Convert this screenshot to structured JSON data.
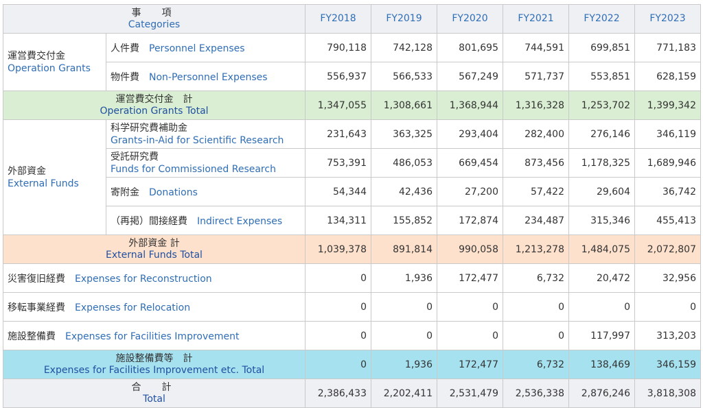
{
  "header": {
    "category_jp": "事　項",
    "category_en": "Categories",
    "years": [
      "FY2018",
      "FY2019",
      "FY2020",
      "FY2021",
      "FY2022",
      "FY2023"
    ]
  },
  "operation_grants": {
    "group_jp": "運営費交付金",
    "group_en": "Operation Grants",
    "rows": [
      {
        "jp": "人件費",
        "en": "Personnel Expenses",
        "values": [
          "790,118",
          "742,128",
          "801,695",
          "744,591",
          "699,851",
          "771,183"
        ]
      },
      {
        "jp": "物件費",
        "en": "Non-Personnel Expenses",
        "values": [
          "556,937",
          "566,533",
          "567,249",
          "571,737",
          "553,851",
          "628,159"
        ]
      }
    ],
    "total": {
      "jp": "運営費交付金　計",
      "en": "Operation Grants Total",
      "values": [
        "1,347,055",
        "1,308,661",
        "1,368,944",
        "1,316,328",
        "1,253,702",
        "1,399,342"
      ]
    }
  },
  "external_funds": {
    "group_jp": "外部資金",
    "group_en": "External Funds",
    "rows": [
      {
        "jp": "科学研究費補助金",
        "en": "Grants-in-Aid for Scientific Research",
        "values": [
          "231,643",
          "363,325",
          "293,404",
          "282,400",
          "276,146",
          "346,119"
        ]
      },
      {
        "jp": "受託研究費",
        "en": "Funds for Commissioned Research",
        "values": [
          "753,391",
          "486,053",
          "669,454",
          "873,456",
          "1,178,325",
          "1,689,946"
        ]
      },
      {
        "jp": "寄附金",
        "en": "Donations",
        "values": [
          "54,344",
          "42,436",
          "27,200",
          "57,422",
          "29,604",
          "36,742"
        ]
      },
      {
        "jp": "（再掲）間接経費",
        "en": "Indirect Expenses",
        "values": [
          "134,311",
          "155,852",
          "172,874",
          "234,487",
          "315,346",
          "455,413"
        ]
      }
    ],
    "total": {
      "jp": "外部資金 計",
      "en": "External Funds Total",
      "values": [
        "1,039,378",
        "891,814",
        "990,058",
        "1,213,278",
        "1,484,075",
        "2,072,807"
      ]
    }
  },
  "facilities": {
    "rows": [
      {
        "jp": "災害復旧経費",
        "en": "Expenses for Reconstruction",
        "values": [
          "0",
          "1,936",
          "172,477",
          "6,732",
          "20,472",
          "32,956"
        ]
      },
      {
        "jp": "移転事業経費",
        "en": "Expenses for Relocation",
        "values": [
          "0",
          "0",
          "0",
          "0",
          "0",
          "0"
        ]
      },
      {
        "jp": "施設整備費",
        "en": "Expenses for Facilities Improvement",
        "values": [
          "0",
          "0",
          "0",
          "0",
          "117,997",
          "313,203"
        ]
      }
    ],
    "total": {
      "jp": "施設整備費等　計",
      "en": "Expenses for Facilities Improvement etc. Total",
      "values": [
        "0",
        "1,936",
        "172,477",
        "6,732",
        "138,469",
        "346,159"
      ]
    }
  },
  "grand_total": {
    "jp": "合　計",
    "en": "Total",
    "values": [
      "2,386,433",
      "2,202,411",
      "2,531,479",
      "2,536,338",
      "2,876,246",
      "3,818,308"
    ]
  },
  "colors": {
    "english_text": "#2f6db5",
    "operation_total_bg": "#d9eed2",
    "external_total_bg": "#fde1cc",
    "facilities_total_bg": "#a6e1f0",
    "header_bg": "#eef0f4"
  }
}
